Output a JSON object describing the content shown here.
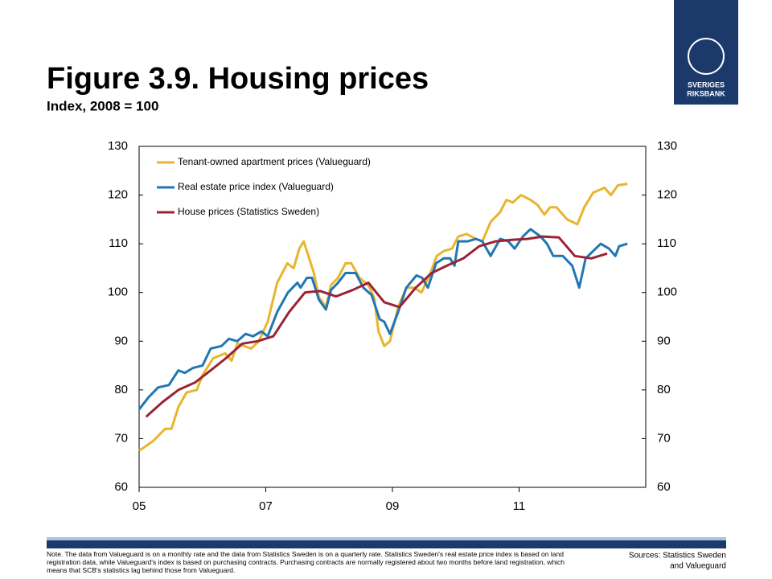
{
  "header": {
    "title": "Figure 3.9. Housing prices",
    "subtitle": "Index, 2008 = 100",
    "logo": [
      "SVERIGES",
      "RIKSBANK"
    ]
  },
  "chart_data": {
    "type": "line",
    "xlim": [
      2005,
      2013
    ],
    "xticks": [
      {
        "value": 2005,
        "label": "05"
      },
      {
        "value": 2007,
        "label": "07"
      },
      {
        "value": 2009,
        "label": "09"
      },
      {
        "value": 2011,
        "label": "11"
      }
    ],
    "ylim": [
      60,
      130
    ],
    "yticks": [
      60,
      70,
      80,
      90,
      100,
      110,
      120,
      130
    ],
    "y2lim": [
      60,
      130
    ],
    "y2ticks": [
      60,
      70,
      80,
      90,
      100,
      110,
      120,
      130
    ],
    "legend": "upper left",
    "series": [
      {
        "name": "Tenant-owned apartment prices (Valueguard)",
        "color": "#e8b52c",
        "x": [
          2005.0,
          2005.22,
          2005.41,
          2005.51,
          2005.62,
          2005.75,
          2005.91,
          2006.0,
          2006.17,
          2006.36,
          2006.46,
          2006.55,
          2006.77,
          2006.89,
          2007.03,
          2007.18,
          2007.34,
          2007.44,
          2007.53,
          2007.6,
          2007.76,
          2007.84,
          2007.95,
          2008.03,
          2008.14,
          2008.26,
          2008.35,
          2008.48,
          2008.62,
          2008.71,
          2008.78,
          2008.87,
          2008.96,
          2009.09,
          2009.22,
          2009.34,
          2009.46,
          2009.6,
          2009.7,
          2009.81,
          2009.94,
          2010.04,
          2010.17,
          2010.32,
          2010.42,
          2010.55,
          2010.7,
          2010.8,
          2010.9,
          2011.03,
          2011.18,
          2011.29,
          2011.4,
          2011.49,
          2011.59,
          2011.76,
          2011.92,
          2012.03,
          2012.17,
          2012.35,
          2012.45,
          2012.56,
          2012.71
        ],
        "values": [
          67.5,
          69.5,
          72,
          72,
          76.5,
          79.5,
          80,
          83,
          86.5,
          87.5,
          86,
          89.5,
          88.5,
          90,
          94,
          102,
          106,
          105,
          109,
          110.5,
          104,
          99,
          97,
          101.5,
          103,
          106,
          106,
          103,
          101.5,
          99,
          92,
          89,
          90,
          97,
          101,
          101,
          100,
          104,
          107.5,
          108.5,
          109,
          111.5,
          112,
          111,
          110.5,
          114.5,
          116.5,
          119,
          118.5,
          120,
          119,
          118,
          116,
          117.5,
          117.5,
          115,
          114,
          117.5,
          120.5,
          121.5,
          120,
          122,
          122.3
        ]
      },
      {
        "name": "Real estate price index (Valueguard)",
        "color": "#1f77b4",
        "x": [
          2005.0,
          2005.15,
          2005.3,
          2005.47,
          2005.62,
          2005.72,
          2005.85,
          2006.0,
          2006.13,
          2006.3,
          2006.42,
          2006.55,
          2006.68,
          2006.8,
          2006.93,
          2007.03,
          2007.18,
          2007.35,
          2007.5,
          2007.55,
          2007.65,
          2007.73,
          2007.84,
          2007.95,
          2008.03,
          2008.14,
          2008.26,
          2008.42,
          2008.54,
          2008.67,
          2008.8,
          2008.87,
          2008.96,
          2009.09,
          2009.22,
          2009.38,
          2009.47,
          2009.56,
          2009.69,
          2009.81,
          2009.91,
          2009.98,
          2010.04,
          2010.19,
          2010.32,
          2010.42,
          2010.55,
          2010.7,
          2010.83,
          2010.93,
          2011.06,
          2011.18,
          2011.34,
          2011.44,
          2011.54,
          2011.69,
          2011.84,
          2011.95,
          2012.05,
          2012.17,
          2012.29,
          2012.42,
          2012.52,
          2012.58,
          2012.71
        ],
        "values": [
          76,
          78.5,
          80.5,
          81,
          84,
          83.5,
          84.5,
          85,
          88.5,
          89,
          90.5,
          90,
          91.5,
          91,
          92,
          91,
          96,
          100,
          102,
          101,
          103,
          103,
          98.5,
          96.5,
          100.5,
          102,
          104,
          104,
          101,
          99.5,
          94.5,
          94,
          91.5,
          96,
          101,
          103.5,
          103,
          101,
          106,
          107,
          107,
          105.5,
          110.5,
          110.5,
          111,
          110.5,
          107.5,
          111,
          110.5,
          109,
          111.5,
          113,
          111.5,
          110,
          107.5,
          107.5,
          105.5,
          101,
          107,
          108.5,
          110,
          109,
          107.5,
          109.5,
          110
        ]
      },
      {
        "name": "House prices (Statistics Sweden)",
        "color": "#9b2335",
        "x": [
          2005.11,
          2005.37,
          2005.62,
          2005.88,
          2006.13,
          2006.37,
          2006.63,
          2006.87,
          2007.12,
          2007.37,
          2007.62,
          2007.86,
          2008.11,
          2008.37,
          2008.62,
          2008.87,
          2009.11,
          2009.37,
          2009.62,
          2009.86,
          2010.12,
          2010.37,
          2010.63,
          2010.88,
          2011.13,
          2011.37,
          2011.63,
          2011.88,
          2012.14,
          2012.39
        ],
        "values": [
          74.5,
          77.5,
          80,
          81.5,
          84,
          86.5,
          89.5,
          90,
          91,
          96,
          100,
          100.3,
          99.2,
          100.5,
          102,
          98,
          97,
          101,
          104,
          105.5,
          107,
          109.5,
          110.5,
          110.8,
          111,
          111.5,
          111.3,
          107.5,
          107,
          108
        ]
      }
    ]
  },
  "footer": {
    "note": "Note. The data from Valueguard is on a monthly rate and the data from Statistics Sweden is on a quarterly rate. Statistics Sweden's real estate price index is based on land registration data, while Valueguard's index is based on purchasing contracts. Purchasing contracts are normally registered about two months before land registration, which means that SCB's statistics lag behind those from Valueguard.",
    "sources": [
      "Sources: Statistics Sweden",
      "and Valueguard"
    ]
  }
}
